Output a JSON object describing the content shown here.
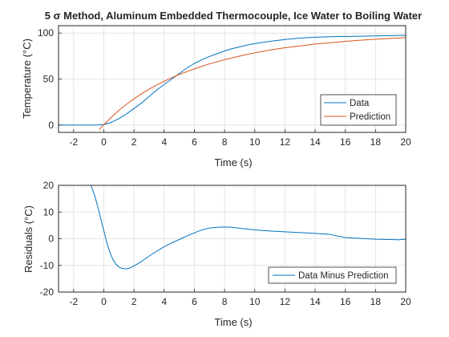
{
  "chart_data": [
    {
      "type": "line",
      "title": "5 σ Method, Aluminum Embedded Thermocouple, Ice Water to Boiling Water",
      "xlabel": "Time (s)",
      "ylabel": "Temperature (°C)",
      "xlim": [
        -3,
        20
      ],
      "ylim": [
        -8,
        108
      ],
      "xticks": [
        -2,
        0,
        2,
        4,
        6,
        8,
        10,
        12,
        14,
        16,
        18,
        20
      ],
      "yticks": [
        0,
        50,
        100
      ],
      "grid": true,
      "legend_location": "bottom-right",
      "series": [
        {
          "name": "Data",
          "color": "#0072BD",
          "x": [
            -3,
            -2,
            -1,
            -0.5,
            0,
            0.5,
            1,
            1.5,
            2,
            2.5,
            3,
            3.5,
            4,
            4.5,
            5,
            5.5,
            6,
            6.5,
            7,
            7.5,
            8,
            8.5,
            9,
            9.5,
            10,
            11,
            12,
            13,
            14,
            15,
            16,
            17,
            18,
            19,
            20
          ],
          "y": [
            0,
            0,
            0,
            0,
            0.5,
            3,
            7,
            12,
            18,
            24,
            31,
            38,
            44,
            50,
            56,
            62,
            67,
            71,
            74.5,
            77.5,
            80.5,
            83,
            85,
            87,
            88.5,
            91,
            93,
            94.5,
            95.5,
            96,
            96.3,
            96.6,
            96.9,
            97.2,
            97.5
          ]
        },
        {
          "name": "Prediction",
          "color": "#D95319",
          "x": [
            -0.3,
            0,
            0.5,
            1,
            1.5,
            2,
            2.5,
            3,
            3.5,
            4,
            4.5,
            5,
            5.5,
            6,
            7,
            8,
            9,
            10,
            11,
            12,
            13,
            14,
            15,
            16,
            17,
            18,
            19,
            20
          ],
          "y": [
            -5,
            0.5,
            8.5,
            16,
            22.5,
            28.5,
            34,
            39,
            43.5,
            47.5,
            51.5,
            55,
            58,
            61,
            66.5,
            71,
            75,
            78.5,
            81.5,
            84,
            86,
            88,
            89.5,
            91,
            92.2,
            93.3,
            94.2,
            95
          ]
        }
      ]
    },
    {
      "type": "line",
      "title": "",
      "xlabel": "Time (s)",
      "ylabel": "Residuals (°C)",
      "xlim": [
        -3,
        20
      ],
      "ylim": [
        -20,
        20
      ],
      "xticks": [
        -2,
        0,
        2,
        4,
        6,
        8,
        10,
        12,
        14,
        16,
        18,
        20
      ],
      "yticks": [
        -20,
        -10,
        0,
        10,
        20
      ],
      "grid": true,
      "legend_location": "bottom-right",
      "series": [
        {
          "name": "Data Minus Prediction",
          "color": "#0072BD",
          "x": [
            -0.85,
            -0.6,
            -0.4,
            -0.2,
            0,
            0.2,
            0.4,
            0.6,
            0.8,
            1.0,
            1.2,
            1.4,
            1.6,
            1.8,
            2.0,
            2.5,
            3,
            3.5,
            4,
            4.5,
            5,
            5.5,
            6,
            6.5,
            7,
            7.5,
            8,
            8.5,
            9,
            9.5,
            10,
            10.5,
            11,
            12,
            13,
            14,
            15,
            15.5,
            16,
            17,
            18,
            19,
            19.5,
            20
          ],
          "y": [
            20,
            16,
            12,
            7.5,
            3,
            -1.5,
            -5,
            -7.8,
            -9.5,
            -10.6,
            -11.1,
            -11.3,
            -11.2,
            -10.8,
            -10.2,
            -8.5,
            -6.5,
            -4.7,
            -3,
            -1.6,
            -0.3,
            1,
            2.2,
            3.3,
            4,
            4.3,
            4.4,
            4.3,
            3.9,
            3.6,
            3.3,
            3.1,
            2.9,
            2.6,
            2.3,
            2,
            1.6,
            1,
            0.4,
            0.1,
            -0.2,
            -0.3,
            -0.4,
            -0.2
          ]
        }
      ]
    }
  ]
}
